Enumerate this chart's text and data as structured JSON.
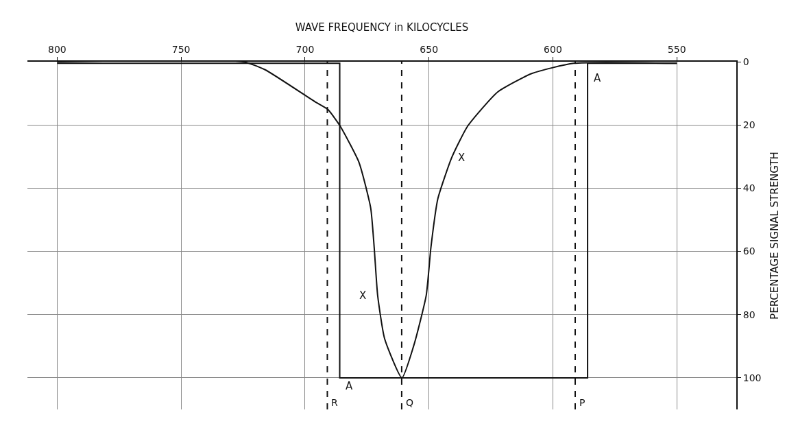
{
  "chart_data": {
    "type": "line",
    "xlabel": "WAVE FREQUENCY in KILOCYCLES",
    "ylabel": "PERCENTAGE SIGNAL STRENGTH",
    "xlim": [
      812,
      526
    ],
    "xticks": [
      800,
      750,
      700,
      650,
      600,
      550
    ],
    "ylim": [
      110,
      0
    ],
    "yticks": [
      0,
      20,
      40,
      60,
      80,
      100
    ],
    "grid": true,
    "legend": false,
    "marker": "none",
    "line_style": "solid",
    "series": [
      {
        "name": "X",
        "color": "#111111",
        "x": [
          800,
          725,
          716.2,
          696.1,
          690.8,
          685.8,
          678.2,
          673.5,
          672.1,
          670.7,
          667.9,
          660.9,
          655.9,
          651.1,
          649.2,
          646.4,
          640.8,
          634.4,
          622.3,
          608.4,
          591.6,
          550
        ],
        "values": [
          0,
          0,
          2.5,
          12.6,
          15.1,
          20.4,
          31.9,
          46.3,
          58.7,
          73.9,
          87.6,
          100,
          89.2,
          73.9,
          58.7,
          43.3,
          30.3,
          20.4,
          9.6,
          3.7,
          0.5,
          0.5
        ]
      },
      {
        "name": "A",
        "color": "#111111",
        "x": [
          800,
          686,
          686,
          586,
          586,
          550
        ],
        "values": [
          0.5,
          0.5,
          100,
          100,
          0.5,
          0.5
        ]
      }
    ],
    "ref_lines": [
      {
        "axis": "x",
        "value": 691,
        "label": "R",
        "line_style": "dashed",
        "color": "#111111"
      },
      {
        "axis": "x",
        "value": 661,
        "label": "Q",
        "line_style": "dashed",
        "color": "#111111"
      },
      {
        "axis": "x",
        "value": 591,
        "label": "P",
        "line_style": "dashed",
        "color": "#111111"
      }
    ]
  }
}
